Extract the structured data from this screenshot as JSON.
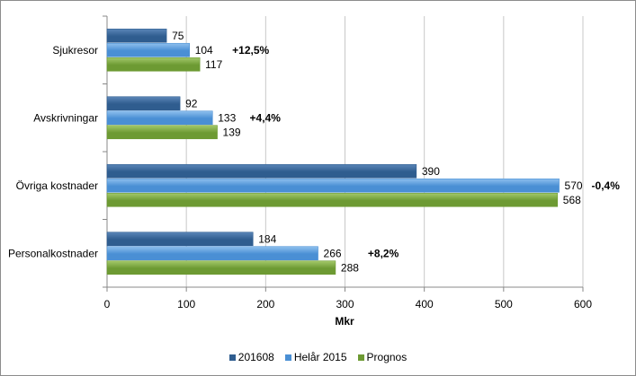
{
  "chart_data": {
    "type": "bar",
    "orientation": "horizontal",
    "categories": [
      "Sjukresor",
      "Avskrivningar",
      "Övriga kostnader",
      "Personalkostnader"
    ],
    "series": [
      {
        "name": "201608",
        "values": [
          75,
          92,
          390,
          184
        ],
        "color": "#2f5d8f",
        "color_light": "#5b86b8"
      },
      {
        "name": "Helår 2015",
        "values": [
          104,
          133,
          570,
          266
        ],
        "color": "#4a8fd4",
        "color_light": "#8fc0ee"
      },
      {
        "name": "Prognos",
        "values": [
          117,
          139,
          568,
          288
        ],
        "color": "#6d9a33",
        "color_light": "#a3c96a"
      }
    ],
    "value_labels": [
      [
        "75",
        "92",
        "390",
        "184"
      ],
      [
        "104",
        "133",
        "570",
        "266"
      ],
      [
        "117",
        "139",
        "568",
        "288"
      ]
    ],
    "annotations": [
      "+12,5%",
      "+4,4%",
      "-0,4%",
      "+8,2%"
    ],
    "xlim": [
      0,
      600
    ],
    "ticks": [
      "0",
      "100",
      "200",
      "300",
      "400",
      "500",
      "600"
    ],
    "xlabel": "Mkr",
    "grid": true,
    "legend_position": "bottom"
  }
}
